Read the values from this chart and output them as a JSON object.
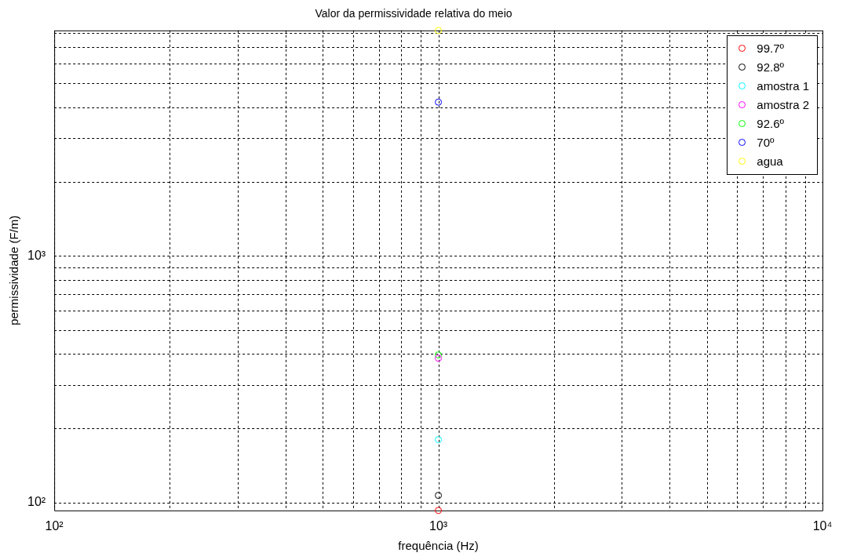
{
  "chart_data": {
    "type": "scatter",
    "title": "Valor da permissividade relativa do meio",
    "xlabel": "frequência (Hz)",
    "ylabel": "permissividade (F/m)",
    "log": "xy",
    "grid": true,
    "legend": "top right",
    "marker": "circle",
    "xlim": [
      100,
      10000
    ],
    "ylim": [
      93,
      8200
    ],
    "xticks": [
      {
        "value": 100,
        "label": "10²"
      },
      {
        "value": 200,
        "label": null
      },
      {
        "value": 300,
        "label": null
      },
      {
        "value": 400,
        "label": null
      },
      {
        "value": 500,
        "label": null
      },
      {
        "value": 600,
        "label": null
      },
      {
        "value": 700,
        "label": null
      },
      {
        "value": 800,
        "label": null
      },
      {
        "value": 900,
        "label": null
      },
      {
        "value": 1000,
        "label": "10³"
      },
      {
        "value": 2000,
        "label": null
      },
      {
        "value": 3000,
        "label": null
      },
      {
        "value": 4000,
        "label": null
      },
      {
        "value": 5000,
        "label": null
      },
      {
        "value": 6000,
        "label": null
      },
      {
        "value": 7000,
        "label": null
      },
      {
        "value": 8000,
        "label": null
      },
      {
        "value": 9000,
        "label": null
      },
      {
        "value": 10000,
        "label": "10⁴"
      }
    ],
    "yticks": [
      {
        "value": 100,
        "label": "10²"
      },
      {
        "value": 200,
        "label": null
      },
      {
        "value": 300,
        "label": null
      },
      {
        "value": 400,
        "label": null
      },
      {
        "value": 500,
        "label": null
      },
      {
        "value": 600,
        "label": null
      },
      {
        "value": 700,
        "label": null
      },
      {
        "value": 800,
        "label": null
      },
      {
        "value": 900,
        "label": null
      },
      {
        "value": 1000,
        "label": "10³"
      },
      {
        "value": 2000,
        "label": null
      },
      {
        "value": 3000,
        "label": null
      },
      {
        "value": 4000,
        "label": null
      },
      {
        "value": 5000,
        "label": null
      },
      {
        "value": 6000,
        "label": null
      },
      {
        "value": 7000,
        "label": null
      },
      {
        "value": 8000,
        "label": null
      }
    ],
    "x": [
      1000
    ],
    "series": [
      {
        "name": "99.7º",
        "color": "#ff0000",
        "values": [
          93
        ]
      },
      {
        "name": "92.8º",
        "color": "#000000",
        "values": [
          107
        ]
      },
      {
        "name": "amostra 1",
        "color": "#00ffff",
        "values": [
          180
        ]
      },
      {
        "name": "amostra 2",
        "color": "#ff00ff",
        "values": [
          385
        ]
      },
      {
        "name": "92.6º",
        "color": "#00ff00",
        "values": [
          397
        ]
      },
      {
        "name": "70º",
        "color": "#0000ff",
        "values": [
          4200
        ]
      },
      {
        "name": "agua",
        "color": "#ffff00",
        "values": [
          8200
        ]
      }
    ]
  }
}
